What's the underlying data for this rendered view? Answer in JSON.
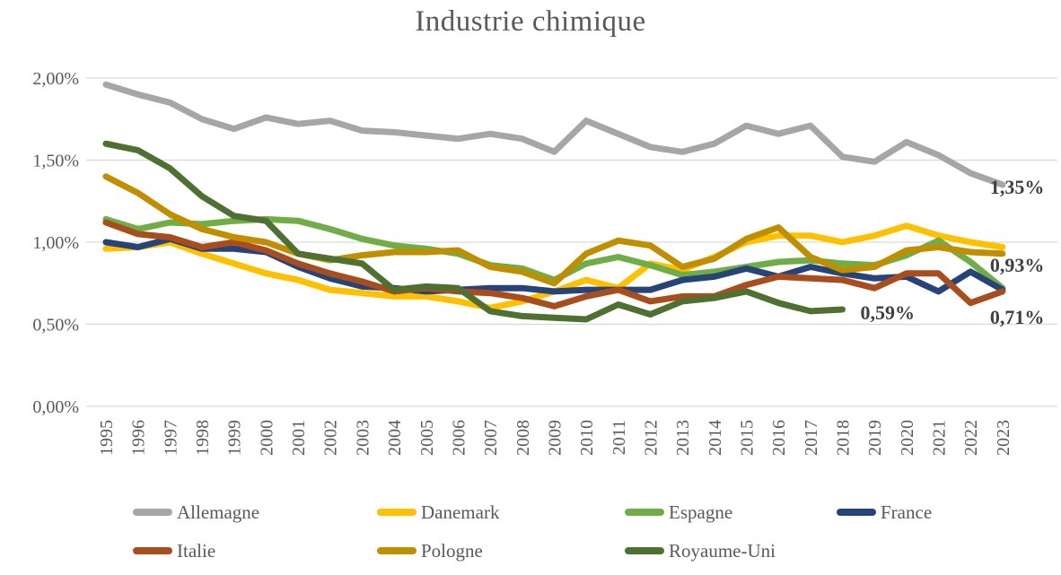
{
  "chart_data": {
    "type": "line",
    "title": "Industrie chimique",
    "x": [
      1995,
      1996,
      1997,
      1998,
      1999,
      2000,
      2001,
      2002,
      2003,
      2004,
      2005,
      2006,
      2007,
      2008,
      2009,
      2010,
      2011,
      2012,
      2013,
      2014,
      2015,
      2016,
      2017,
      2018,
      2019,
      2020,
      2021,
      2022,
      2023
    ],
    "xlabel": "",
    "ylabel": "",
    "y_axis": {
      "min": 0,
      "max": 2.0,
      "tick_values": [
        0,
        0.5,
        1.0,
        1.5,
        2.0
      ],
      "tick_labels": [
        "0,00%",
        "0,50%",
        "1,00%",
        "1,50%",
        "2,00%"
      ]
    },
    "grid": "horizontal",
    "legend_position": "bottom",
    "colors": {
      "grid": "#D9D9D9",
      "axis_text": "#595959",
      "title_text": "#595959",
      "annotation_text": "#3F3F3F"
    },
    "series": [
      {
        "name": "Allemagne",
        "color": "#A6A6A6",
        "values": [
          1.96,
          1.9,
          1.85,
          1.75,
          1.69,
          1.76,
          1.72,
          1.74,
          1.68,
          1.67,
          1.65,
          1.63,
          1.66,
          1.63,
          1.55,
          1.74,
          1.66,
          1.58,
          1.55,
          1.6,
          1.71,
          1.66,
          1.71,
          1.52,
          1.49,
          1.61,
          1.53,
          1.42,
          1.35
        ]
      },
      {
        "name": "Danemark",
        "color": "#FFC000",
        "values": [
          0.96,
          0.97,
          1.0,
          0.93,
          0.87,
          0.81,
          0.77,
          0.71,
          0.69,
          0.67,
          0.67,
          0.64,
          0.6,
          0.64,
          0.7,
          0.77,
          0.72,
          0.87,
          0.83,
          0.91,
          1.0,
          1.04,
          1.04,
          1.0,
          1.04,
          1.1,
          1.04,
          1.0,
          0.97
        ]
      },
      {
        "name": "Espagne",
        "color": "#70AD47",
        "values": [
          1.14,
          1.08,
          1.12,
          1.11,
          1.13,
          1.14,
          1.13,
          1.08,
          1.02,
          0.98,
          0.96,
          0.93,
          0.86,
          0.84,
          0.77,
          0.87,
          0.91,
          0.86,
          0.8,
          0.82,
          0.85,
          0.88,
          0.89,
          0.87,
          0.86,
          0.92,
          1.01,
          0.88,
          0.72
        ]
      },
      {
        "name": "France",
        "color": "#264478",
        "values": [
          1.0,
          0.97,
          1.02,
          0.96,
          0.96,
          0.94,
          0.85,
          0.78,
          0.73,
          0.72,
          0.7,
          0.71,
          0.72,
          0.72,
          0.7,
          0.71,
          0.71,
          0.71,
          0.77,
          0.79,
          0.84,
          0.79,
          0.85,
          0.81,
          0.78,
          0.79,
          0.7,
          0.82,
          0.71
        ]
      },
      {
        "name": "Italie",
        "color": "#A84E1E",
        "values": [
          1.12,
          1.05,
          1.03,
          0.97,
          1.0,
          0.95,
          0.87,
          0.81,
          0.76,
          0.7,
          0.72,
          0.7,
          0.69,
          0.66,
          0.61,
          0.67,
          0.71,
          0.64,
          0.67,
          0.67,
          0.74,
          0.79,
          0.78,
          0.77,
          0.72,
          0.81,
          0.81,
          0.63,
          0.7
        ]
      },
      {
        "name": "Pologne",
        "color": "#BF8F00",
        "values": [
          1.4,
          1.3,
          1.17,
          1.08,
          1.03,
          1.0,
          0.93,
          0.89,
          0.92,
          0.94,
          0.94,
          0.95,
          0.85,
          0.82,
          0.75,
          0.93,
          1.01,
          0.98,
          0.85,
          0.9,
          1.02,
          1.09,
          0.91,
          0.83,
          0.85,
          0.95,
          0.97,
          0.94,
          0.93
        ]
      },
      {
        "name": "Royaume-Uni",
        "color": "#4E7031",
        "values": [
          1.6,
          1.56,
          1.45,
          1.28,
          1.16,
          1.13,
          0.93,
          0.9,
          0.87,
          0.71,
          0.73,
          0.72,
          0.58,
          0.55,
          0.54,
          0.53,
          0.62,
          0.56,
          0.64,
          0.66,
          0.7,
          0.63,
          0.58,
          0.59
        ]
      }
    ],
    "annotations": [
      {
        "text": "1,35%",
        "series": "Allemagne",
        "year": 2023
      },
      {
        "text": "0,93%",
        "series": "Pologne",
        "year": 2023
      },
      {
        "text": "0,71%",
        "series": "France",
        "year": 2023
      },
      {
        "text": "0,59%",
        "series": "Royaume-Uni",
        "year": 2018
      }
    ],
    "legend": {
      "rows": [
        [
          "Allemagne",
          "Danemark",
          "Espagne",
          "France"
        ],
        [
          "Italie",
          "Pologne",
          "Royaume-Uni"
        ]
      ]
    }
  }
}
